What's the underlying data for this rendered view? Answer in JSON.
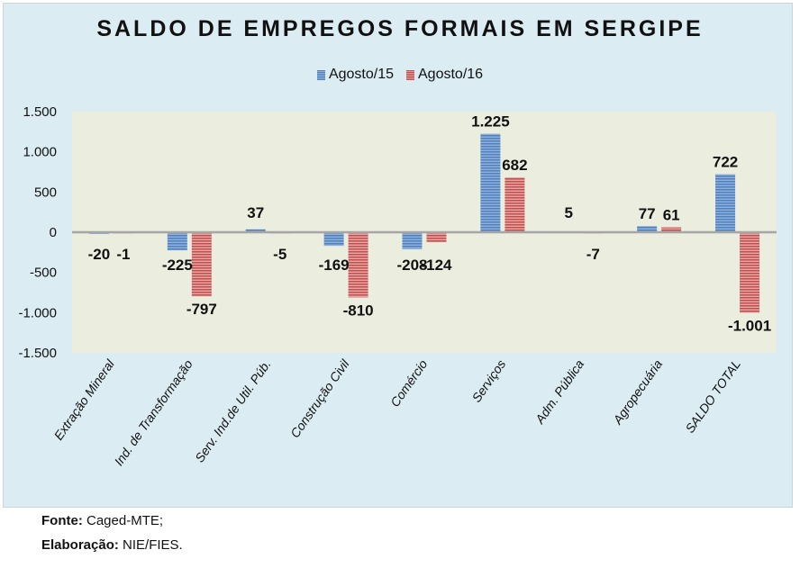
{
  "chart_data": {
    "type": "bar",
    "title": "SALDO DE EMPREGOS FORMAIS EM SERGIPE",
    "xlabel": "",
    "ylabel": "",
    "ylim": [
      -1500,
      1500
    ],
    "yticks": [
      1500,
      1000,
      500,
      0,
      -500,
      -1000,
      -1500
    ],
    "ytick_labels": [
      "1.500",
      "1.000",
      "500",
      "0",
      "-500",
      "-1.000",
      "-1.500"
    ],
    "grid": false,
    "legend_position": "top-center",
    "categories": [
      "Extração Mineral",
      "Ind. de Transformação",
      "Serv. Ind.de Util. Púb.",
      "Construção Civil",
      "Comércio",
      "Serviços",
      "Adm. Pública",
      "Agropecuária",
      "SALDO TOTAL"
    ],
    "series": [
      {
        "name": "Agosto/15",
        "color": "#4f81bd",
        "values": [
          -20,
          -225,
          37,
          -169,
          -208,
          1225,
          5,
          77,
          722
        ],
        "labels": [
          "-20",
          "-225",
          "37",
          "-169",
          "-208",
          "1.225",
          "5",
          "77",
          "722"
        ]
      },
      {
        "name": "Agosto/16",
        "color": "#c0504d",
        "values": [
          -1,
          -797,
          -5,
          -810,
          -124,
          682,
          -7,
          61,
          -1001
        ],
        "labels": [
          "-1",
          "-797",
          "-5",
          "-810",
          "-124",
          "682",
          "-7",
          "61",
          "-1.001"
        ]
      }
    ]
  },
  "footer": {
    "source_label": "Fonte:",
    "source_value": "Caged-MTE;",
    "credit_label": "Elaboração:",
    "credit_value": "NIE/FIES."
  }
}
